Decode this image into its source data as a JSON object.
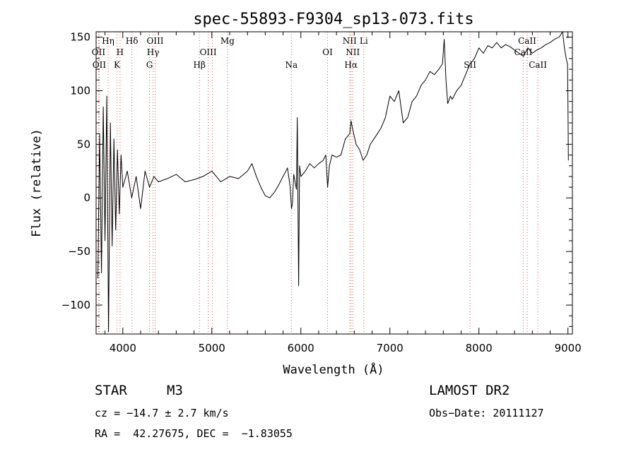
{
  "chart_data": {
    "type": "line",
    "title": "spec-55893-F9304_sp13-073.fits",
    "xlabel": "Wavelength (Å)",
    "ylabel": "Flux (relative)",
    "xlim": [
      3700,
      9050
    ],
    "ylim": [
      -127,
      155
    ],
    "xticks": [
      4000,
      5000,
      6000,
      7000,
      8000,
      9000
    ],
    "xtick_labels": [
      "4000",
      "5000",
      "6000",
      "7000",
      "8000",
      "9000"
    ],
    "yticks": [
      -100,
      -50,
      0,
      50,
      100,
      150
    ],
    "ytick_labels": [
      "−100",
      "−50",
      "0",
      "50",
      "100",
      "150"
    ],
    "grid": false,
    "series": [
      {
        "x": [
          3720,
          3740,
          3760,
          3780,
          3800,
          3820,
          3840,
          3860,
          3880,
          3900,
          3920,
          3940,
          3960,
          3980,
          4000,
          4050,
          4100,
          4150,
          4200,
          4250,
          4300,
          4350,
          4400,
          4500,
          4600,
          4700,
          4800,
          4900,
          5000,
          5100,
          5200,
          5300,
          5400,
          5450,
          5500,
          5550,
          5600,
          5650,
          5700,
          5750,
          5800,
          5850,
          5880,
          5895,
          5905,
          5920,
          5950,
          5960,
          5975,
          5985,
          6000,
          6050,
          6100,
          6150,
          6200,
          6250,
          6280,
          6300,
          6320,
          6350,
          6400,
          6450,
          6500,
          6550,
          6563,
          6580,
          6620,
          6660,
          6700,
          6740,
          6780,
          6820,
          6860,
          6900,
          6950,
          7000,
          7050,
          7100,
          7150,
          7200,
          7250,
          7300,
          7350,
          7400,
          7450,
          7500,
          7550,
          7590,
          7610,
          7630,
          7650,
          7680,
          7700,
          7750,
          7800,
          7850,
          7900,
          7950,
          8000,
          8050,
          8100,
          8150,
          8200,
          8250,
          8300,
          8350,
          8400,
          8450,
          8500,
          8550,
          8600,
          8650,
          8700,
          8750,
          8800,
          8850,
          8900,
          8940,
          8960,
          8980,
          8995,
          9000,
          9005
        ],
        "y": [
          -75,
          60,
          -70,
          85,
          -40,
          95,
          -125,
          70,
          -45,
          55,
          -30,
          45,
          -15,
          40,
          10,
          25,
          0,
          20,
          -10,
          25,
          10,
          20,
          15,
          18,
          22,
          15,
          17,
          20,
          25,
          15,
          20,
          18,
          25,
          32,
          20,
          10,
          2,
          0,
          5,
          12,
          20,
          28,
          10,
          -10,
          -5,
          22,
          8,
          75,
          -82,
          30,
          20,
          25,
          32,
          28,
          32,
          35,
          40,
          10,
          30,
          40,
          38,
          40,
          55,
          60,
          72,
          65,
          50,
          45,
          35,
          40,
          50,
          55,
          60,
          65,
          75,
          95,
          90,
          100,
          70,
          75,
          90,
          95,
          105,
          110,
          118,
          115,
          120,
          125,
          148,
          110,
          88,
          95,
          92,
          100,
          105,
          115,
          125,
          130,
          140,
          135,
          142,
          140,
          145,
          140,
          143,
          141,
          138,
          135,
          132,
          140,
          135,
          138,
          140,
          143,
          145,
          148,
          150,
          155,
          140,
          130,
          125,
          90,
          35
        ]
      }
    ],
    "lines": [
      {
        "wave": 3727,
        "row": 2,
        "label": "OII"
      },
      {
        "wave": 3735,
        "row": 3,
        "label": "OII"
      },
      {
        "wave": 3835,
        "row": 1,
        "label": "Hη"
      },
      {
        "wave": 3934,
        "row": 3,
        "label": "K"
      },
      {
        "wave": 3969,
        "row": 2,
        "label": "H"
      },
      {
        "wave": 4102,
        "row": 1,
        "label": "Hδ"
      },
      {
        "wave": 4300,
        "row": 3,
        "label": "G"
      },
      {
        "wave": 4340,
        "row": 2,
        "label": "Hγ"
      },
      {
        "wave": 4363,
        "row": 1,
        "label": "OIII"
      },
      {
        "wave": 4861,
        "row": 3,
        "label": "Hβ"
      },
      {
        "wave": 4959,
        "row": 2,
        "label": "OIII"
      },
      {
        "wave": 5007,
        "row": 0,
        "label": ""
      },
      {
        "wave": 5175,
        "row": 1,
        "label": "Mg"
      },
      {
        "wave": 5893,
        "row": 3,
        "label": "Na"
      },
      {
        "wave": 6300,
        "row": 2,
        "label": "OI"
      },
      {
        "wave": 6548,
        "row": 1,
        "label": "NII"
      },
      {
        "wave": 6563,
        "row": 3,
        "label": "Hα"
      },
      {
        "wave": 6583,
        "row": 2,
        "label": "NII"
      },
      {
        "wave": 6707,
        "row": 1,
        "label": "Li"
      },
      {
        "wave": 7900,
        "row": 3,
        "label": "SII"
      },
      {
        "wave": 8498,
        "row": 2,
        "label": "CaII"
      },
      {
        "wave": 8542,
        "row": 1,
        "label": "CaII"
      },
      {
        "wave": 8662,
        "row": 3,
        "label": "CaII"
      }
    ]
  },
  "info": {
    "class": "STAR",
    "subclass": "M3",
    "survey": "LAMOST DR2",
    "cz": "cz = −14.7 ± 2.7 km/s",
    "obs_date": "Obs−Date: 20111127",
    "radec": "RA =  42.27675, DEC =  −1.83055"
  }
}
